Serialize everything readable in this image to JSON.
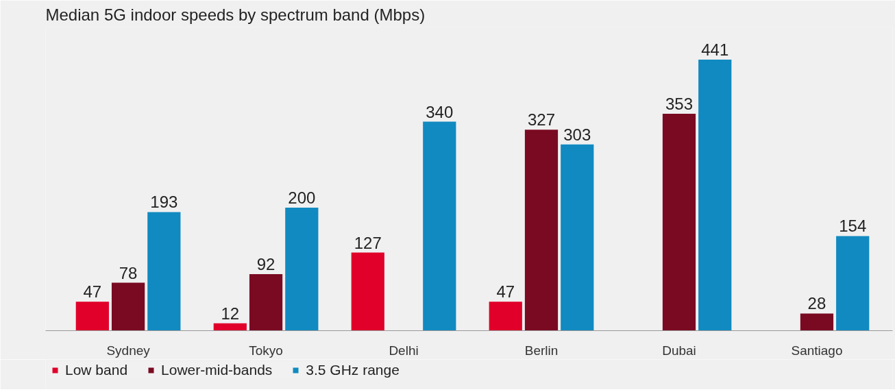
{
  "chart_data": {
    "type": "bar",
    "title": "Median 5G indoor speeds by spectrum band (Mbps)",
    "categories": [
      "Sydney",
      "Tokyo",
      "Delhi",
      "Berlin",
      "Dubai",
      "Santiago"
    ],
    "series": [
      {
        "name": "Low band",
        "color": "#e0002a",
        "values": [
          47,
          12,
          127,
          47,
          null,
          null
        ]
      },
      {
        "name": "Lower-mid-bands",
        "color": "#7a0a22",
        "values": [
          78,
          92,
          null,
          327,
          353,
          28
        ]
      },
      {
        "name": "3.5 GHz range",
        "color": "#118ac1",
        "values": [
          193,
          200,
          340,
          303,
          441,
          154
        ]
      }
    ],
    "data_labels": true,
    "grid": false,
    "legend": "bottom"
  }
}
